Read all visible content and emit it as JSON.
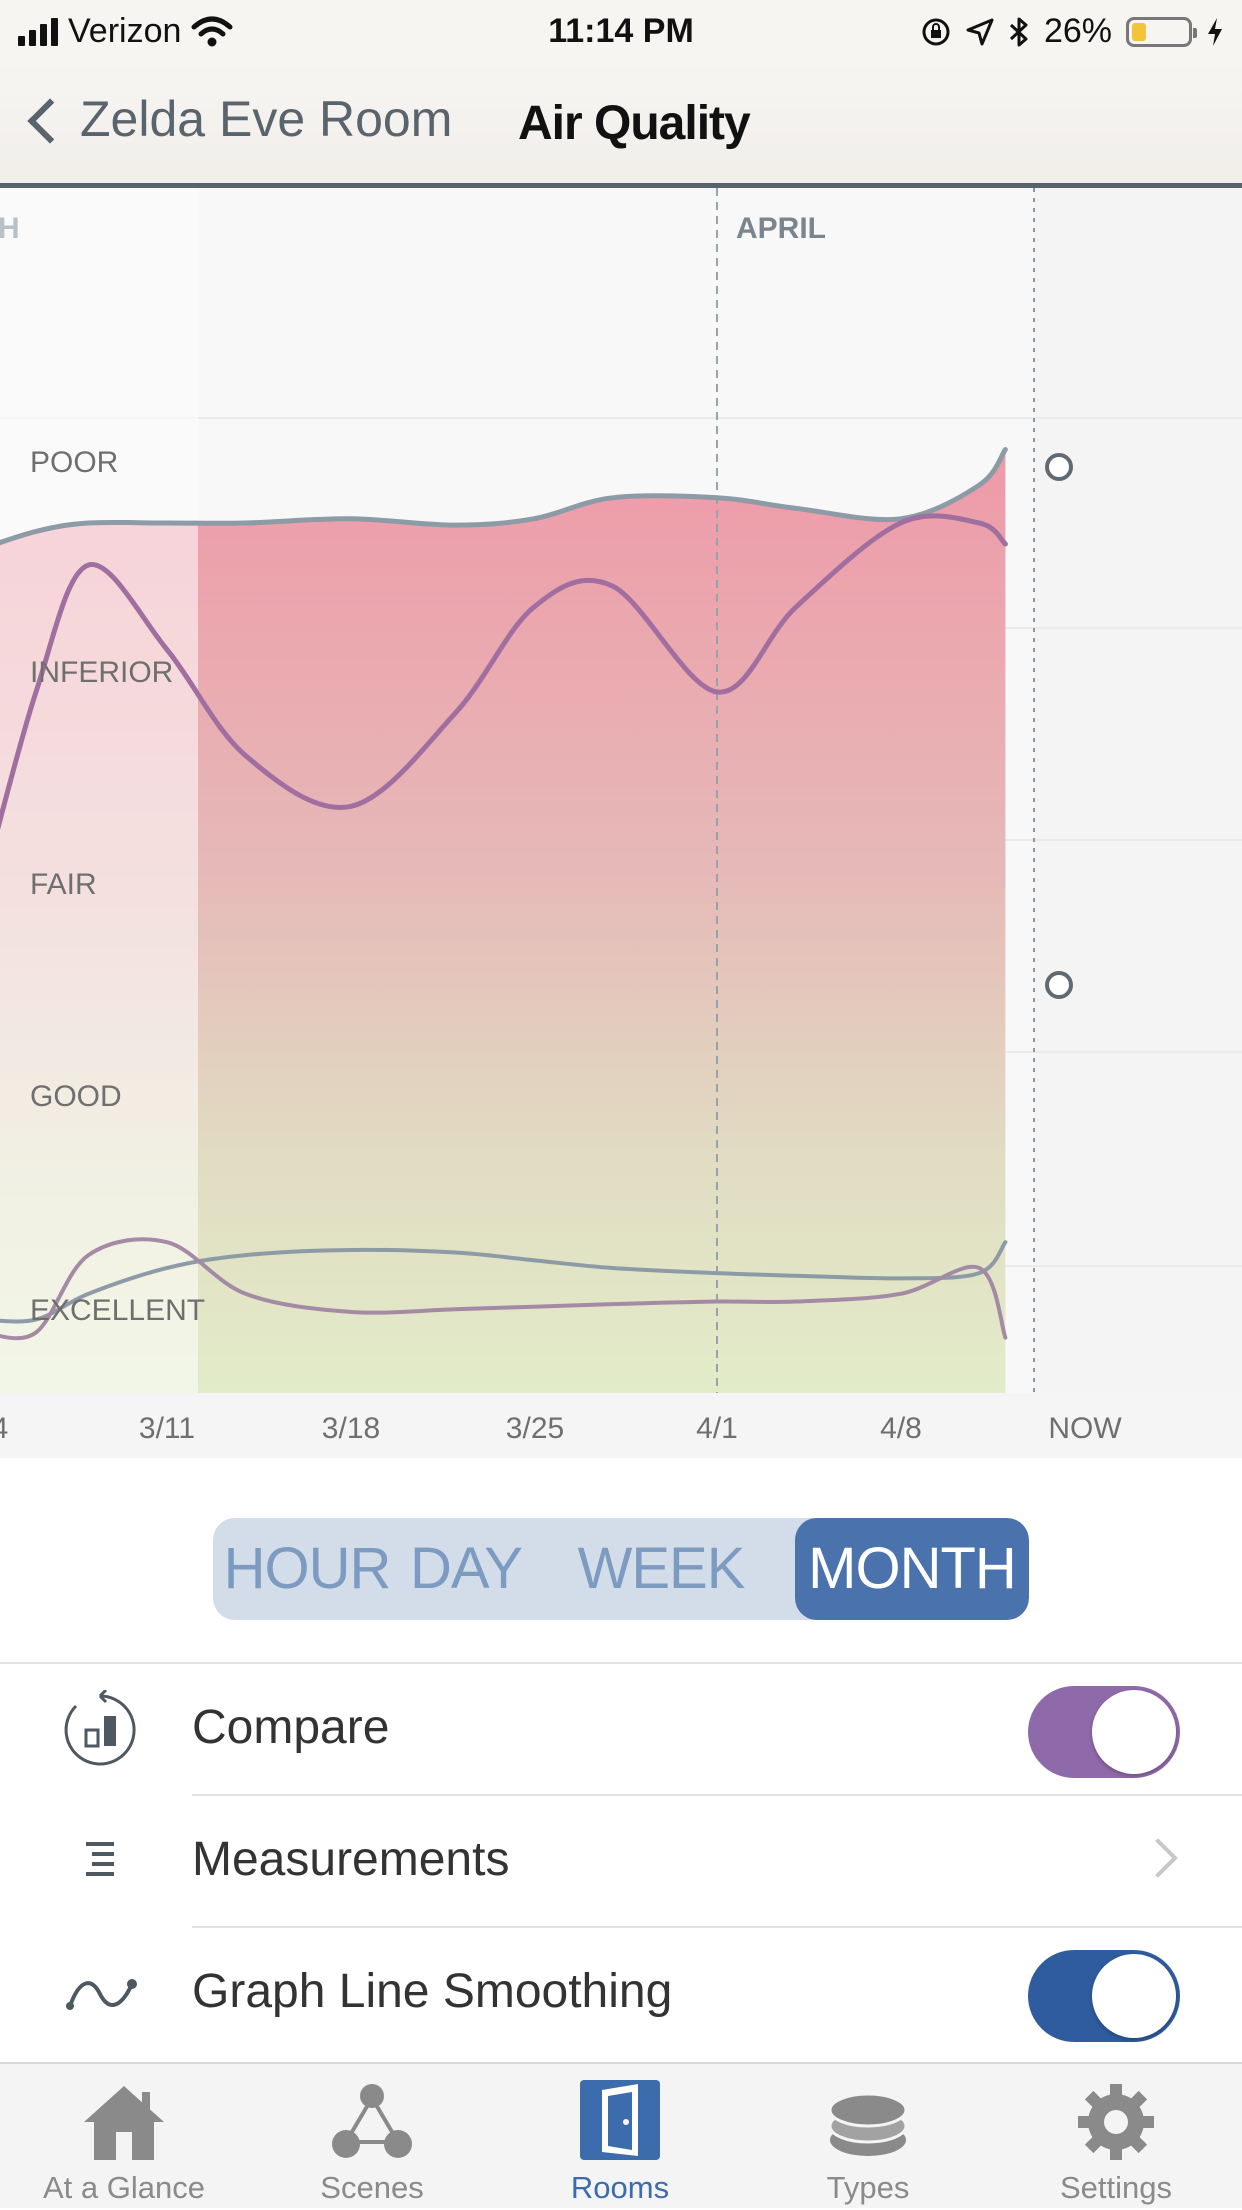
{
  "status_bar": {
    "carrier": "Verizon",
    "time": "11:14 PM",
    "battery_percent": "26%",
    "battery_level": 0.26,
    "icons": [
      "signal-icon",
      "wifi-icon",
      "rotation-lock-icon",
      "location-icon",
      "bluetooth-icon",
      "battery-icon",
      "charging-icon"
    ]
  },
  "nav": {
    "back_label": "Zelda Eve Room",
    "title": "Air Quality"
  },
  "chart_data": {
    "type": "line",
    "month_labels": [
      "H",
      "APRIL"
    ],
    "ylabels": [
      "POOR",
      "INFERIOR",
      "FAIR",
      "GOOD",
      "EXCELLENT"
    ],
    "x_tick_labels": [
      "4",
      "3/11",
      "3/18",
      "3/25",
      "4/1",
      "4/8",
      "NOW"
    ],
    "y_scale": "POOR=4, INFERIOR=3, FAIR=2, GOOD=1, EXCELLENT=0",
    "x": [
      "3/4",
      "3/6",
      "3/8",
      "3/11",
      "3/14",
      "3/18",
      "3/22",
      "3/25",
      "3/28",
      "4/1",
      "4/4",
      "4/8",
      "4/11",
      "4/12"
    ],
    "series": [
      {
        "values": [
          3.18,
          3.26,
          3.3,
          3.3,
          3.3,
          3.32,
          3.29,
          3.32,
          3.42,
          3.42,
          3.37,
          3.32,
          3.48,
          3.65
        ]
      },
      {
        "values": [
          1.6,
          2.5,
          3.1,
          2.7,
          2.2,
          1.96,
          2.4,
          2.9,
          3.0,
          2.5,
          2.9,
          3.3,
          3.3,
          3.2
        ]
      },
      {
        "values": [
          -0.2,
          -0.2,
          -0.1,
          0.0,
          0.05,
          0.07,
          0.06,
          0.03,
          0.0,
          -0.02,
          -0.03,
          -0.04,
          -0.02,
          0.1
        ]
      },
      {
        "values": [
          -0.25,
          -0.25,
          0.05,
          0.1,
          -0.1,
          -0.17,
          -0.16,
          -0.15,
          -0.14,
          -0.13,
          -0.13,
          -0.1,
          0.0,
          -0.27
        ]
      }
    ],
    "legend": "none",
    "grid": true
  },
  "range": {
    "options": [
      "HOUR",
      "DAY",
      "WEEK",
      "MONTH"
    ],
    "selected": "MONTH"
  },
  "settings": {
    "compare": {
      "label": "Compare",
      "on": true,
      "color": "#8f6aaa"
    },
    "measurements": {
      "label": "Measurements"
    },
    "smoothing": {
      "label": "Graph Line Smoothing",
      "on": true,
      "color": "#2f5c9e"
    }
  },
  "tabs": [
    {
      "label": "At a Glance",
      "icon": "house-icon"
    },
    {
      "label": "Scenes",
      "icon": "scenes-icon"
    },
    {
      "label": "Rooms",
      "icon": "door-icon",
      "active": true
    },
    {
      "label": "Types",
      "icon": "layers-icon"
    },
    {
      "label": "Settings",
      "icon": "gear-icon"
    }
  ]
}
